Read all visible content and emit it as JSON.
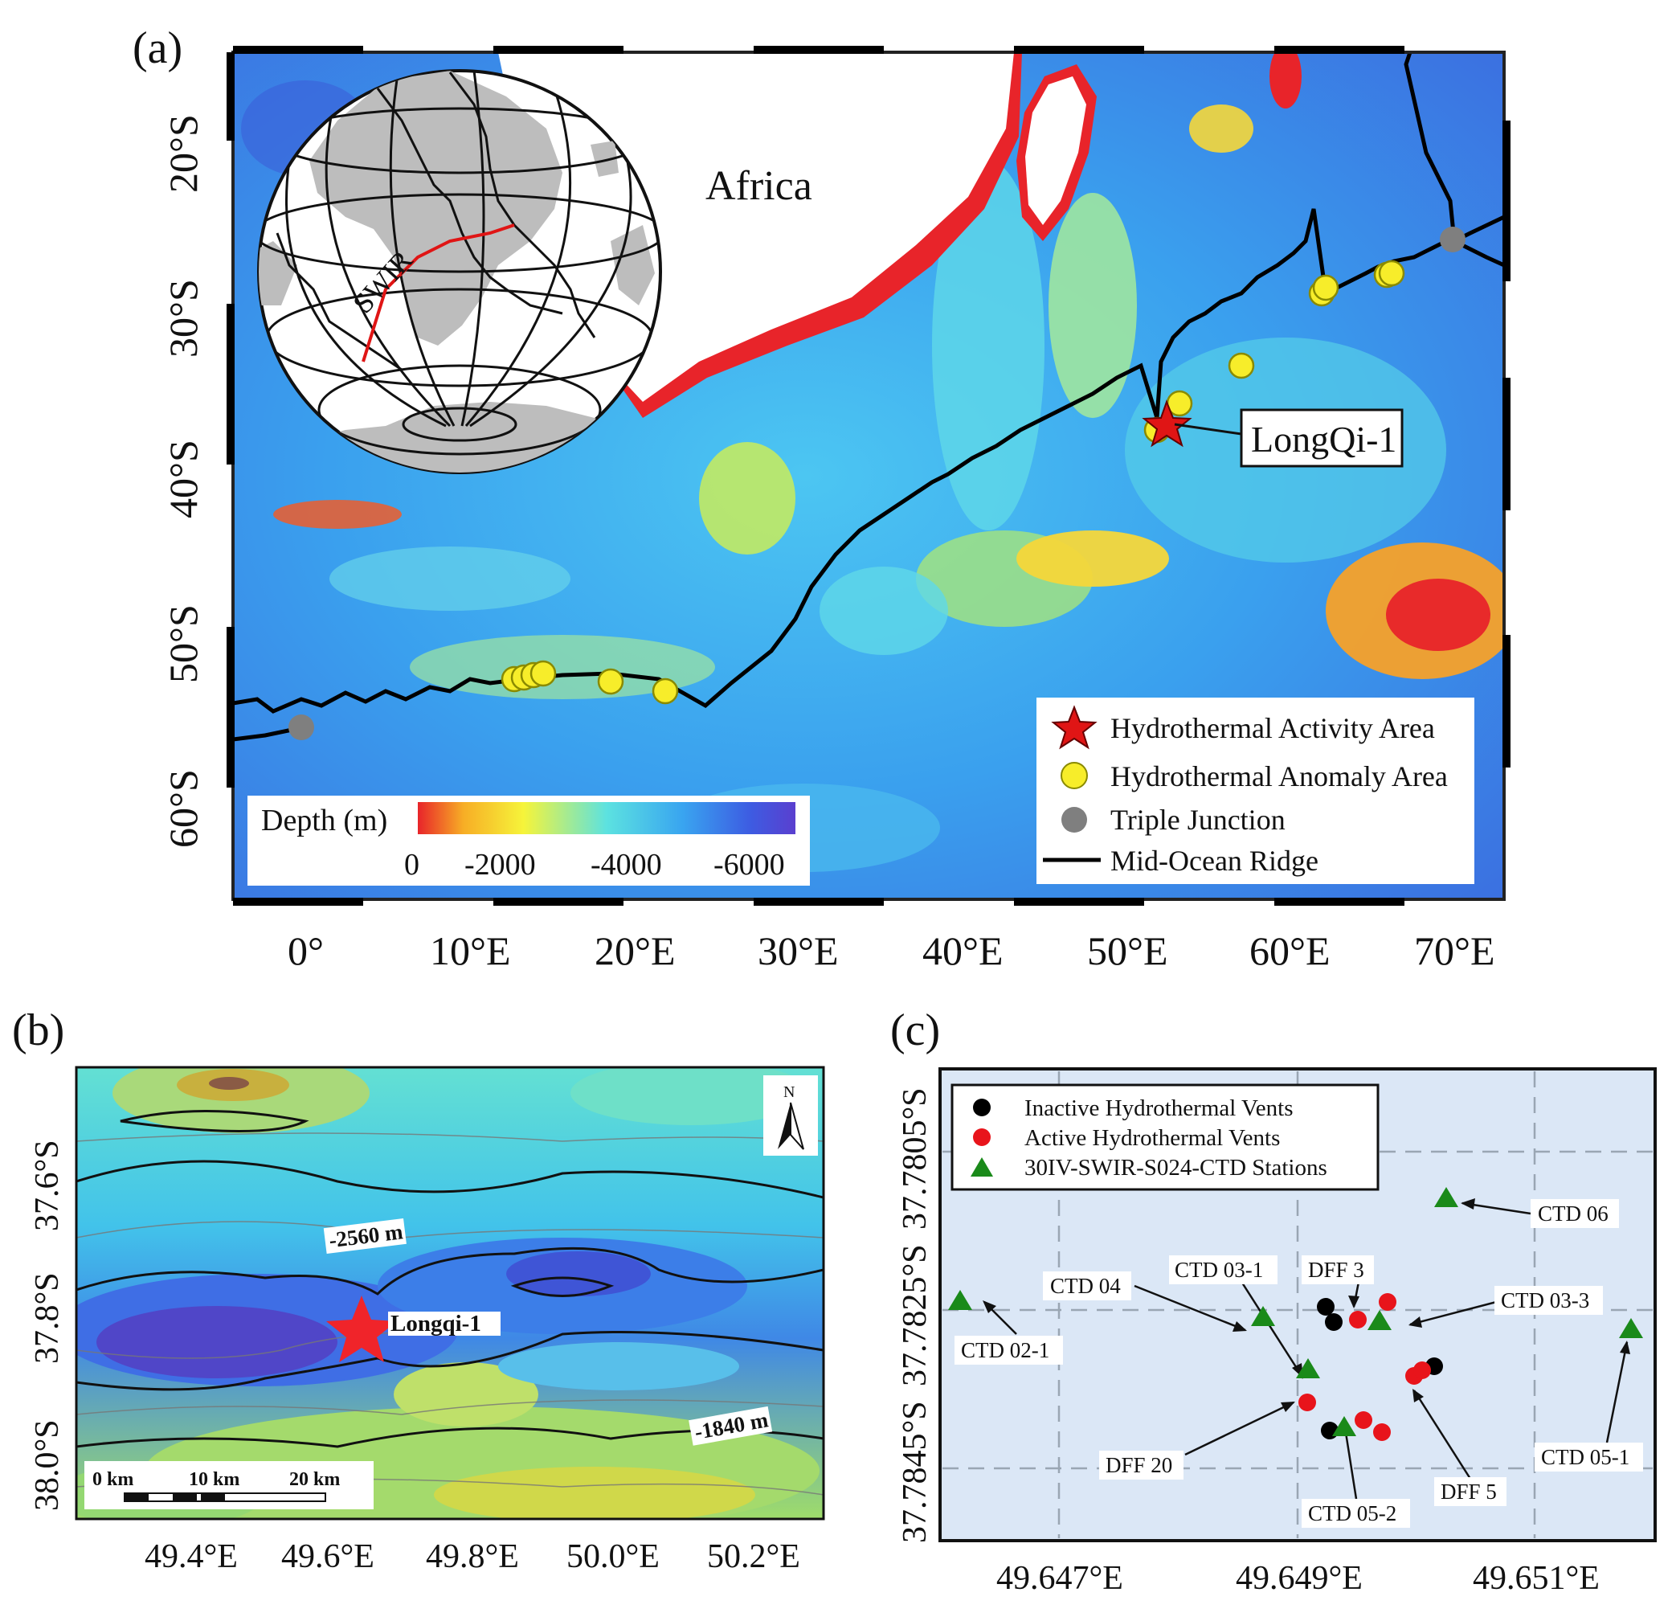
{
  "panel_a": {
    "label": "(a)",
    "lon_ticks": [
      "0°",
      "10°E",
      "20°E",
      "30°E",
      "40°E",
      "50°E",
      "60°E",
      "70°E"
    ],
    "lat_ticks": [
      "20°S",
      "30°S",
      "40°S",
      "50°S",
      "60°S"
    ],
    "continent_label": "Africa",
    "globe_ridge_label": "SWIR",
    "site_label": "LongQi-1",
    "colorbar": {
      "title": "Depth (m)",
      "tick_labels": [
        "0",
        "-2000",
        "-4000",
        "-6000"
      ],
      "colors": [
        "#e8242a",
        "#f7ad25",
        "#f6f43a",
        "#5ce2e0",
        "#39a5f0",
        "#3d5ce2",
        "#5a3fcf"
      ]
    },
    "legend": [
      {
        "symbol": "red-star",
        "label": "Hydrothermal Activity Area"
      },
      {
        "symbol": "yellow-circle",
        "label": "Hydrothermal Anomaly Area"
      },
      {
        "symbol": "gray-circle",
        "label": "Triple Junction"
      },
      {
        "symbol": "black-line",
        "label": "Mid-Ocean Ridge"
      }
    ]
  },
  "panel_b": {
    "label": "(b)",
    "lon_ticks": [
      "49.4°E",
      "49.6°E",
      "49.8°E",
      "50.0°E",
      "50.2°E"
    ],
    "lat_ticks": [
      "37.6°S",
      "37.8°S",
      "38.0°S"
    ],
    "site_label": "Longqi-1",
    "contour_labels": [
      "-2560 m",
      "-1840 m"
    ],
    "north_label": "N",
    "scale_labels": [
      "0 km",
      "10 km",
      "20 km"
    ]
  },
  "panel_c": {
    "label": "(c)",
    "lon_ticks": [
      "49.647°E",
      "49.649°E",
      "49.651°E"
    ],
    "lat_ticks": [
      "37.7805°S",
      "37.7825°S",
      "37.7845°S"
    ],
    "legend": [
      {
        "symbol": "black-circle",
        "label": "Inactive Hydrothermal Vents"
      },
      {
        "symbol": "red-circle",
        "label": "Active Hydrothermal Vents"
      },
      {
        "symbol": "green-triangle",
        "label": "30IV-SWIR-S024-CTD Stations"
      }
    ],
    "callouts": [
      "CTD 06",
      "CTD 03-1",
      "DFF 3",
      "CTD 04",
      "CTD 03-3",
      "CTD 02-1",
      "CTD 05-1",
      "DFF 20",
      "DFF 5",
      "CTD 05-2"
    ],
    "colors": {
      "inactive": "#000000",
      "active": "#e8141b",
      "ctd": "#1a8a1a",
      "background": "#dbe7f6"
    }
  }
}
